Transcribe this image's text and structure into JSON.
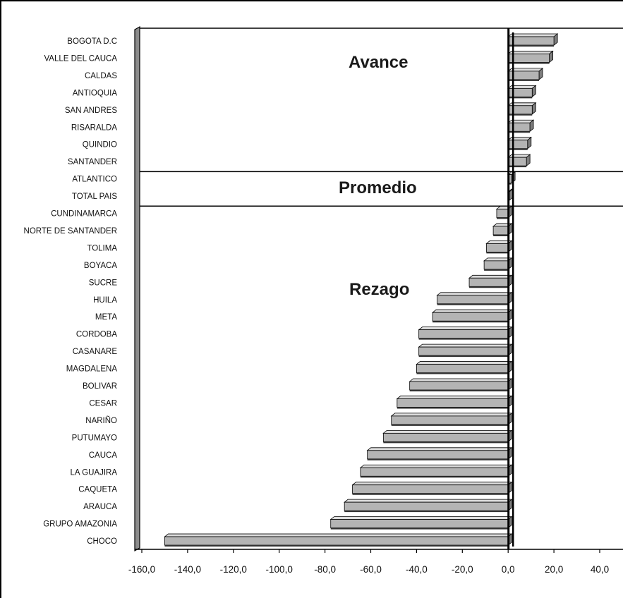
{
  "chart_data": {
    "type": "bar",
    "orientation": "horizontal",
    "style": "3d",
    "bar_color": "#b4b4b4",
    "categories": [
      "BOGOTA D.C",
      "VALLE DEL CAUCA",
      "CALDAS",
      "ANTIOQUIA",
      "SAN ANDRES",
      "RISARALDA",
      "QUINDIO",
      "SANTANDER",
      "ATLANTICO",
      "TOTAL PAIS",
      "CUNDINAMARCA",
      "NORTE DE SANTANDER",
      "TOLIMA",
      "BOYACA",
      "SUCRE",
      "HUILA",
      "META",
      "CORDOBA",
      "CASANARE",
      "MAGDALENA",
      "BOLIVAR",
      "CESAR",
      "NARIÑO",
      "PUTUMAYO",
      "CAUCA",
      "LA GUAJIRA",
      "CAQUETA",
      "ARAUCA",
      "GRUPO AMAZONIA",
      "CHOCO"
    ],
    "values": [
      20.0,
      18.0,
      13.5,
      10.5,
      10.5,
      9.5,
      8.5,
      8.0,
      1.5,
      0.5,
      -5.0,
      -6.5,
      -9.5,
      -10.5,
      -17.0,
      -31.0,
      -33.0,
      -39.0,
      -39.0,
      -40.0,
      -43.0,
      -48.5,
      -51.0,
      -54.5,
      -61.5,
      -64.5,
      -68.0,
      -71.5,
      -77.5,
      -150.0
    ],
    "xlim": [
      -160,
      40
    ],
    "xticks": [
      "-160,0",
      "-140,0",
      "-120,0",
      "-100,0",
      "-80,0",
      "-60,0",
      "-40,0",
      "-20,0",
      "0,0",
      "20,0",
      "40,0"
    ],
    "xtick_values": [
      -160,
      -140,
      -120,
      -100,
      -80,
      -60,
      -40,
      -20,
      0,
      20,
      40
    ],
    "grid": false,
    "legend": "none",
    "zones": [
      {
        "label": "Avance",
        "first_category": "BOGOTA D.C",
        "last_category": "SANTANDER"
      },
      {
        "label": "Promedio",
        "first_category": "ATLANTICO",
        "last_category": "TOTAL PAIS"
      },
      {
        "label": "Rezago",
        "first_category": "CUNDINAMARCA",
        "last_category": "CHOCO"
      }
    ],
    "title": "",
    "xlabel": "",
    "ylabel": ""
  }
}
